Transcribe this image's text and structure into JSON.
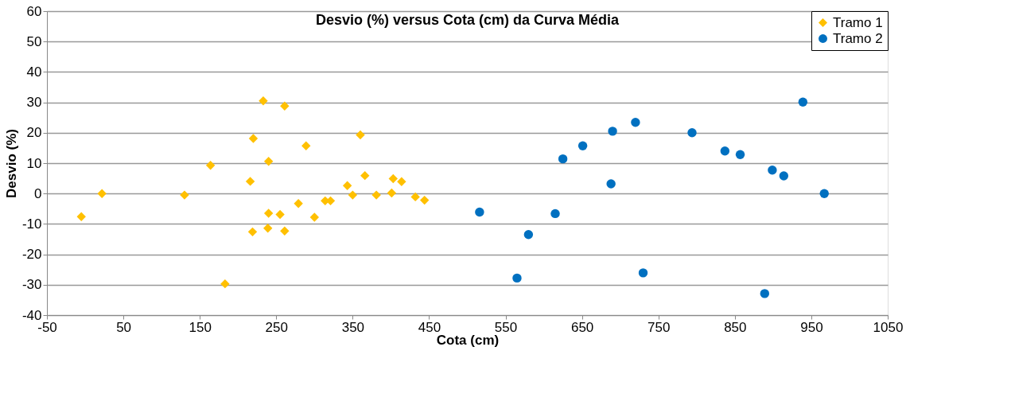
{
  "chart_data": {
    "type": "scatter",
    "title": "Desvio (%) versus Cota (cm) da Curva Média",
    "xlabel": "Cota (cm)",
    "ylabel": "Desvio (%)",
    "xlim": [
      -50,
      1050
    ],
    "xticks": [
      -50,
      50,
      150,
      250,
      350,
      450,
      550,
      650,
      750,
      850,
      950,
      1050
    ],
    "ylim": [
      -40,
      60
    ],
    "yticks": [
      -40,
      -30,
      -20,
      -10,
      0,
      10,
      20,
      30,
      40,
      50,
      60
    ],
    "grid": "y",
    "legend": "top right",
    "series": [
      {
        "name": "Tramo 1",
        "color": "#ffc000",
        "marker": "diamond",
        "x": [
          -5,
          22,
          130,
          164,
          183,
          216,
          220,
          219,
          233,
          240,
          240,
          239,
          255,
          261,
          261,
          279,
          289,
          300,
          314,
          321,
          343,
          350,
          360,
          366,
          381,
          401,
          403,
          414,
          432,
          444
        ],
        "values": [
          -7.6,
          0,
          -0.5,
          9.3,
          -29.7,
          4.0,
          18.1,
          -12.6,
          30.5,
          10.6,
          -6.5,
          -11.4,
          -6.9,
          28.8,
          -12.3,
          -3.3,
          15.7,
          -7.8,
          -2.4,
          -2.4,
          2.6,
          -0.5,
          19.3,
          5.9,
          -0.5,
          0.2,
          4.9,
          3.9,
          -1.1,
          -2.2
        ]
      },
      {
        "name": "Tramo 2",
        "color": "#0070c0",
        "marker": "circle",
        "x": [
          516,
          565,
          580,
          615,
          625,
          651,
          688,
          690,
          720,
          730,
          794,
          837,
          857,
          889,
          899,
          914,
          939,
          967
        ],
        "values": [
          -6.1,
          -27.8,
          -13.5,
          -6.6,
          11.4,
          15.7,
          3.2,
          20.5,
          23.4,
          -26.1,
          20.0,
          14.0,
          12.8,
          -32.9,
          7.7,
          5.8,
          30.1,
          0
        ]
      }
    ]
  }
}
